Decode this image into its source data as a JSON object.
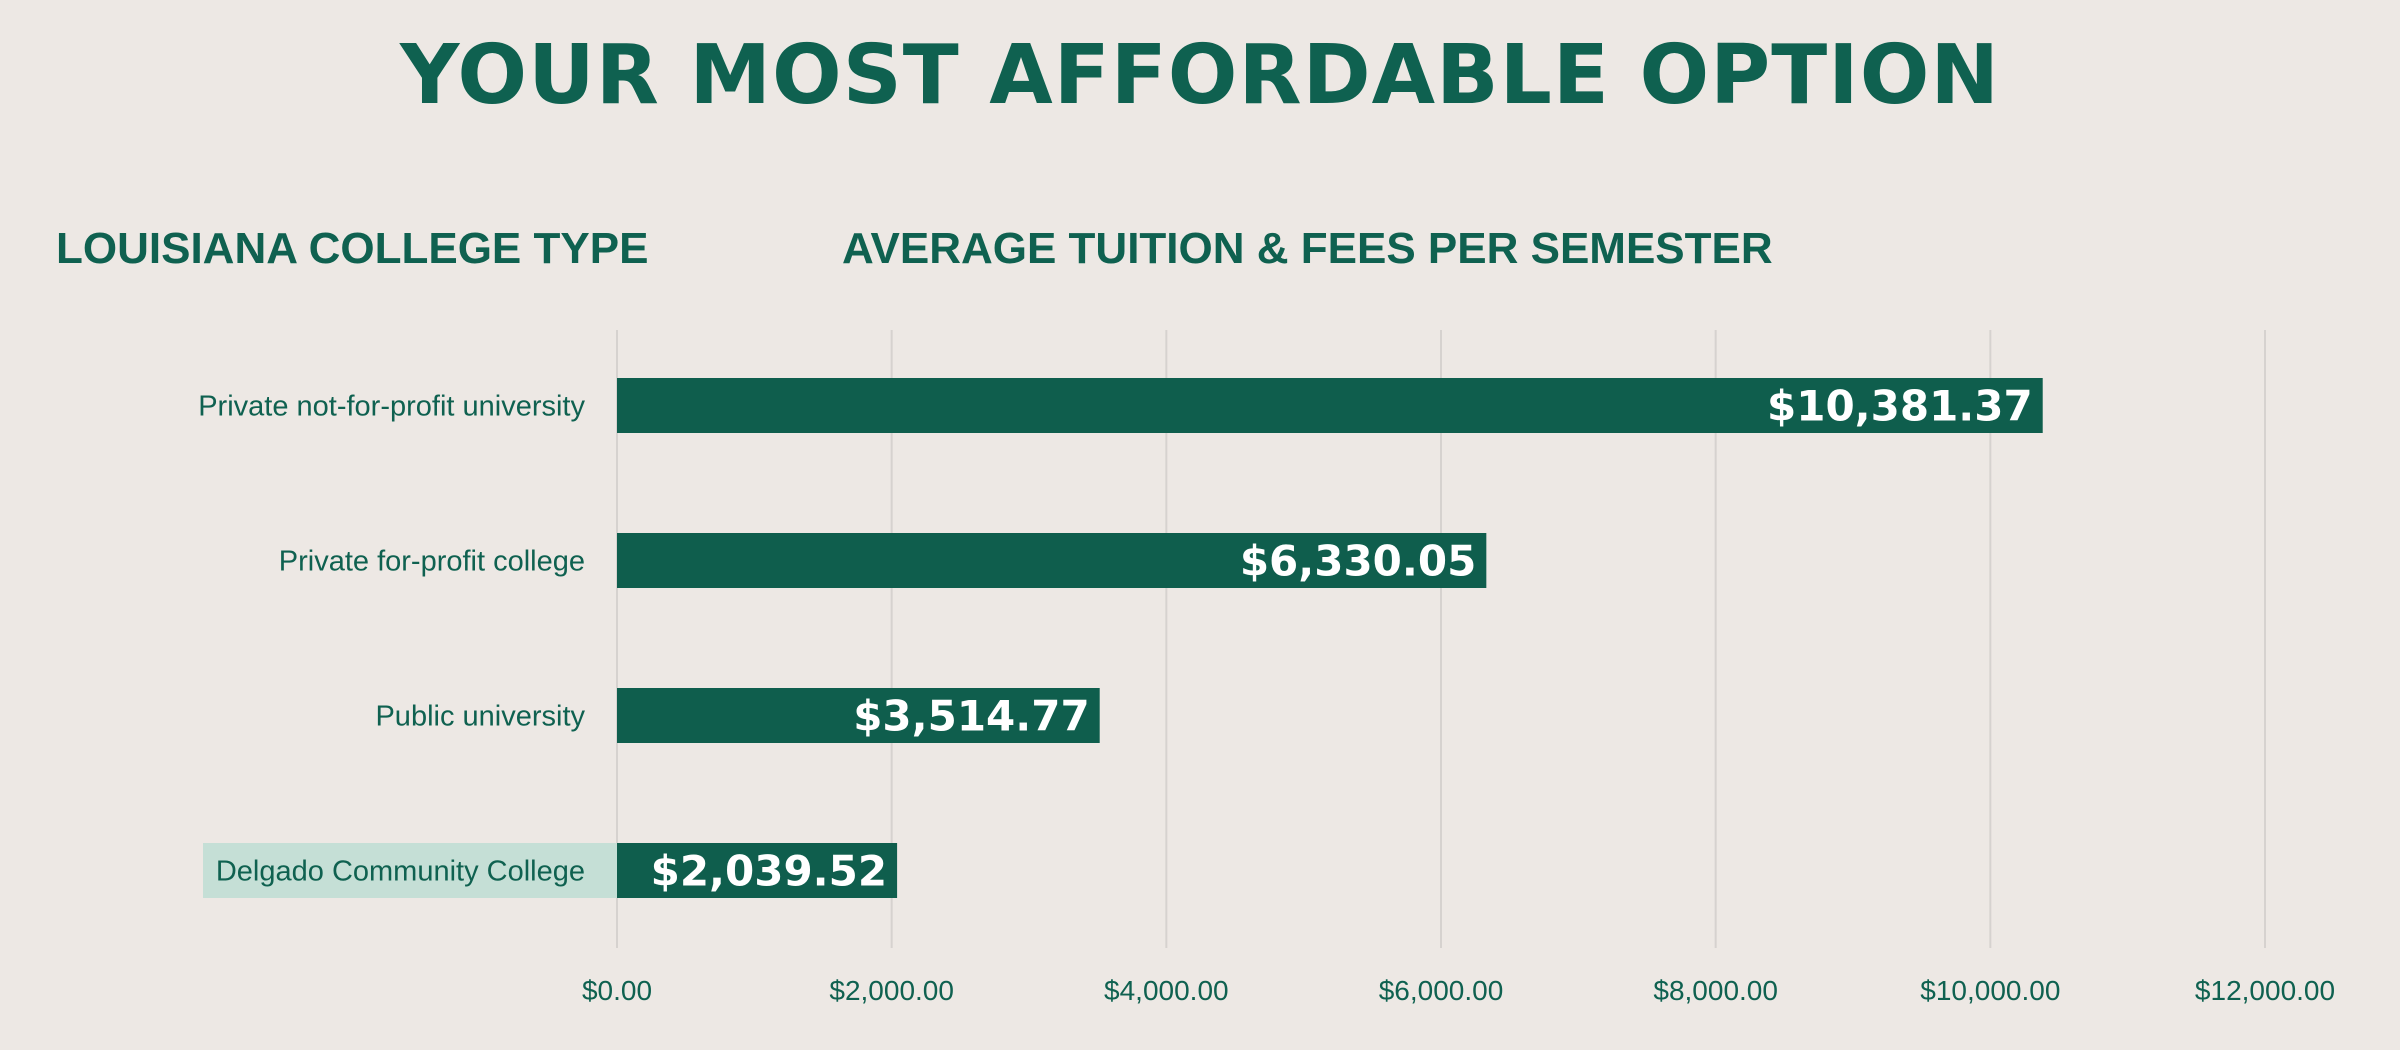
{
  "header": {
    "title": "YOUR MOST AFFORDABLE OPTION",
    "left_heading": "LOUISIANA COLLEGE TYPE",
    "right_heading": "AVERAGE TUITION & FEES PER SEMESTER"
  },
  "colors": {
    "background": "#ede8e4",
    "bar": "#0f5e4d",
    "text": "#0f6150",
    "highlight": "#c5dfd6",
    "grid": "#d6d2cf",
    "bar_label": "#ffffff"
  },
  "chart_data": {
    "type": "bar",
    "orientation": "horizontal",
    "categories": [
      "Private not-for-profit university",
      "Private for-profit college",
      "Public university",
      "Delgado Community College"
    ],
    "values": [
      10381.37,
      6330.05,
      3514.77,
      2039.52
    ],
    "value_labels": [
      "$10,381.37",
      "$6,330.05",
      "$3,514.77",
      "$2,039.52"
    ],
    "highlighted_category": "Delgado Community College",
    "xlim": [
      0,
      12000
    ],
    "x_ticks": [
      0,
      2000,
      4000,
      6000,
      8000,
      10000,
      12000
    ],
    "x_tick_labels": [
      "$0.00",
      "$2,000.00",
      "$4,000.00",
      "$6,000.00",
      "$8,000.00",
      "$10,000.00",
      "$12,000.00"
    ],
    "grid": true,
    "legend": "none",
    "title": "",
    "xlabel": "",
    "ylabel": ""
  }
}
